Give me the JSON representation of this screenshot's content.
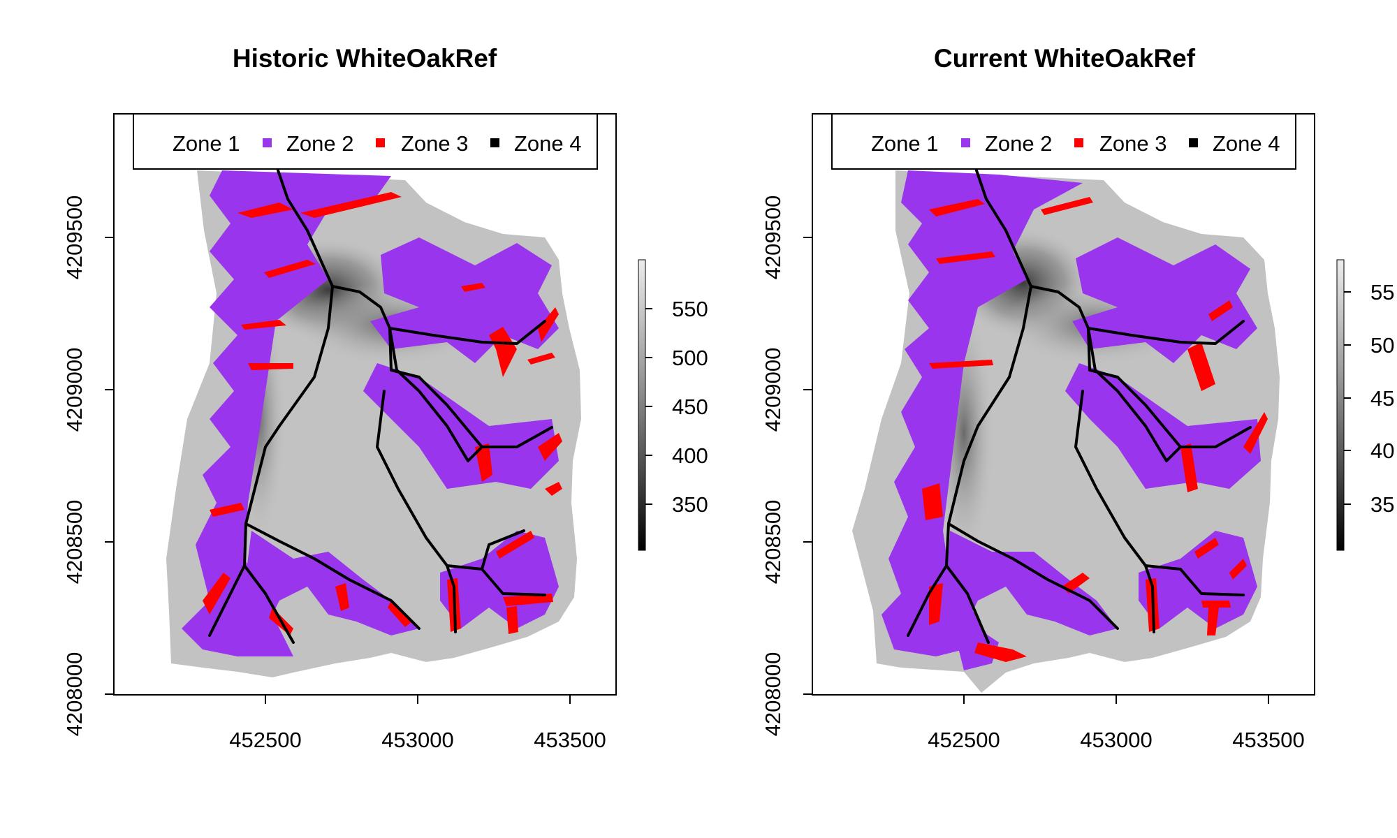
{
  "panels": [
    {
      "id": "historic",
      "title": "Historic WhiteOakRef",
      "legend": [
        {
          "label": "Zone 1",
          "color": ""
        },
        {
          "label": "Zone 2",
          "color": "#9a35ee"
        },
        {
          "label": "Zone 3",
          "color": "#ff0000"
        },
        {
          "label": "Zone 4",
          "color": "#000000"
        }
      ],
      "x_ticks": [
        "452500",
        "453000",
        "453500"
      ],
      "y_ticks": [
        "4208000",
        "4208500",
        "4209000",
        "4209500"
      ],
      "colorbar": {
        "ticks": [
          "350",
          "400",
          "450",
          "500",
          "550"
        ]
      }
    },
    {
      "id": "current",
      "title": "Current WhiteOakRef",
      "legend": [
        {
          "label": "Zone 1",
          "color": ""
        },
        {
          "label": "Zone 2",
          "color": "#9a35ee"
        },
        {
          "label": "Zone 3",
          "color": "#ff0000"
        },
        {
          "label": "Zone 4",
          "color": "#000000"
        }
      ],
      "x_ticks": [
        "452500",
        "453000",
        "453500"
      ],
      "y_ticks": [
        "4208000",
        "4208500",
        "4209000",
        "4209500"
      ],
      "colorbar": {
        "ticks": [
          "35",
          "40",
          "45",
          "50",
          "55"
        ]
      }
    }
  ],
  "colors": {
    "zone2": "#9a35ee",
    "zone3": "#ff0000",
    "zone4": "#000000",
    "terrain_light": "#c8c8c8",
    "terrain_dark": "#555555"
  }
}
